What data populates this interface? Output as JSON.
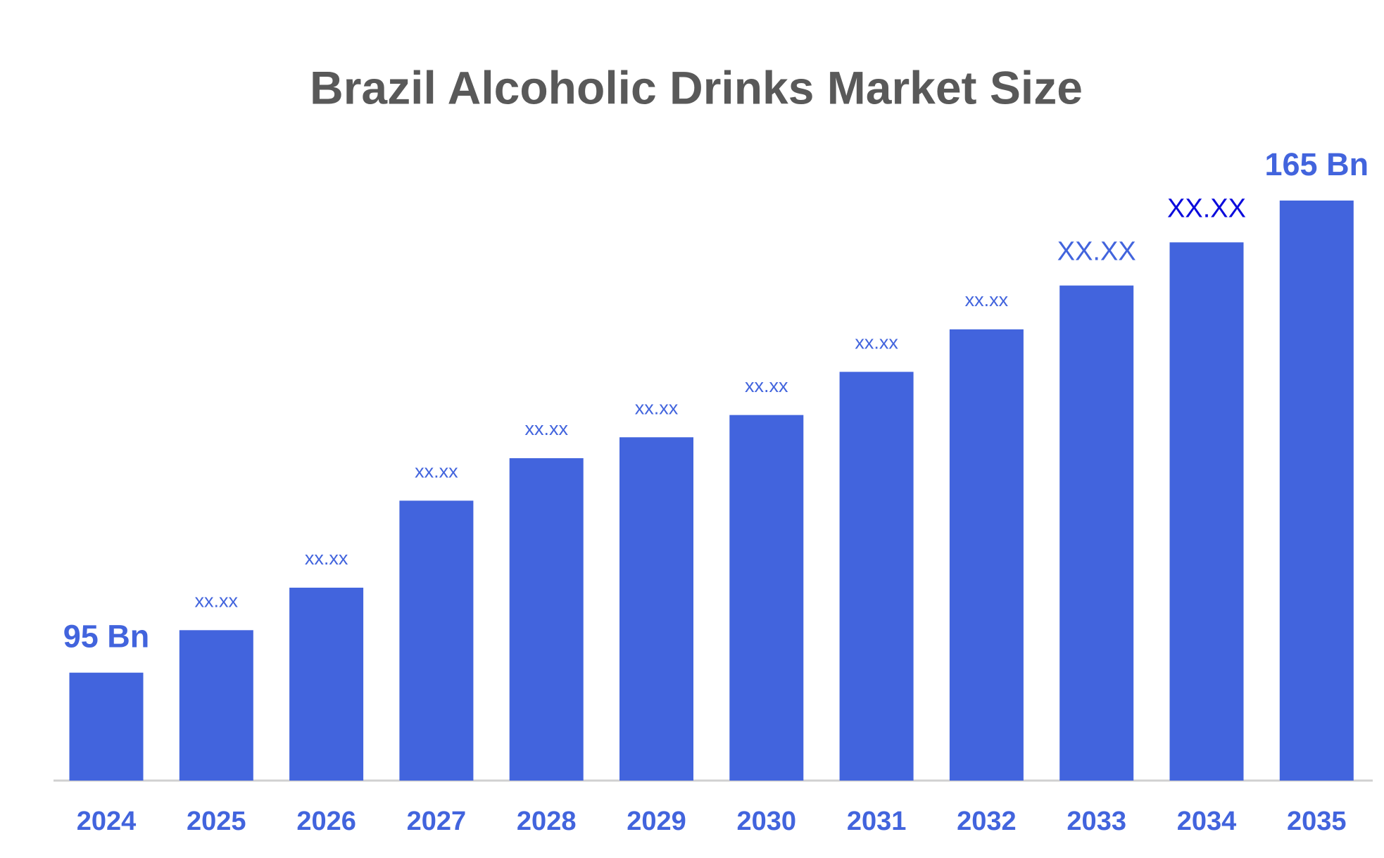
{
  "chart_data": {
    "type": "bar",
    "title": "Brazil Alcoholic Drinks Market Size",
    "categories": [
      "2024",
      "2025",
      "2026",
      "2027",
      "2028",
      "2029",
      "2030",
      "2031",
      "2032",
      "2033",
      "2034",
      "2035"
    ],
    "values": [
      95,
      101.3,
      107.6,
      120.5,
      126.8,
      129.9,
      133.2,
      139.6,
      145.9,
      152.4,
      158.8,
      165
    ],
    "value_labels": [
      "95 Bn",
      "xx.xx",
      "xx.xx",
      "xx.xx",
      "xx.xx",
      "xx.xx",
      "xx.xx",
      "xx.xx",
      "xx.xx",
      "XX.XX",
      "XX.XX",
      "165 Bn"
    ],
    "color": "#4264dd",
    "ylim": [
      79,
      170
    ]
  }
}
